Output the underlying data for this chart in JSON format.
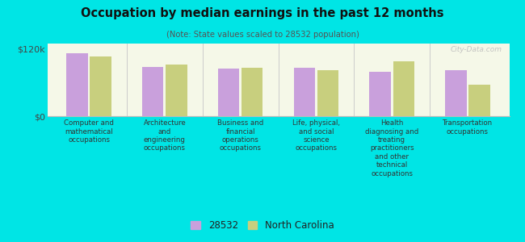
{
  "title": "Occupation by median earnings in the past 12 months",
  "subtitle": "(Note: State values scaled to 28532 population)",
  "categories": [
    "Computer and\nmathematical\noccupations",
    "Architecture\nand\nengineering\noccupations",
    "Business and\nfinancial\noperations\noccupations",
    "Life, physical,\nand social\nscience\noccupations",
    "Health\ndiagnosing and\ntreating\npractitioners\nand other\ntechnical\noccupations",
    "Transportation\noccupations"
  ],
  "values_28532": [
    112000,
    88000,
    85000,
    86000,
    79000,
    83000
  ],
  "values_nc": [
    107000,
    93000,
    87000,
    83000,
    98000,
    57000
  ],
  "ylim": [
    0,
    130000
  ],
  "ytick_positions": [
    0,
    120000
  ],
  "ytick_labels": [
    "$0",
    "$120k"
  ],
  "color_28532": "#c9a0dc",
  "color_nc": "#c8cf7e",
  "background_color": "#00e5e5",
  "plot_bg_top": "#f5f8e8",
  "plot_bg_bottom": "#e8f0d0",
  "legend_label_28532": "28532",
  "legend_label_nc": "North Carolina",
  "watermark": "City-Data.com"
}
